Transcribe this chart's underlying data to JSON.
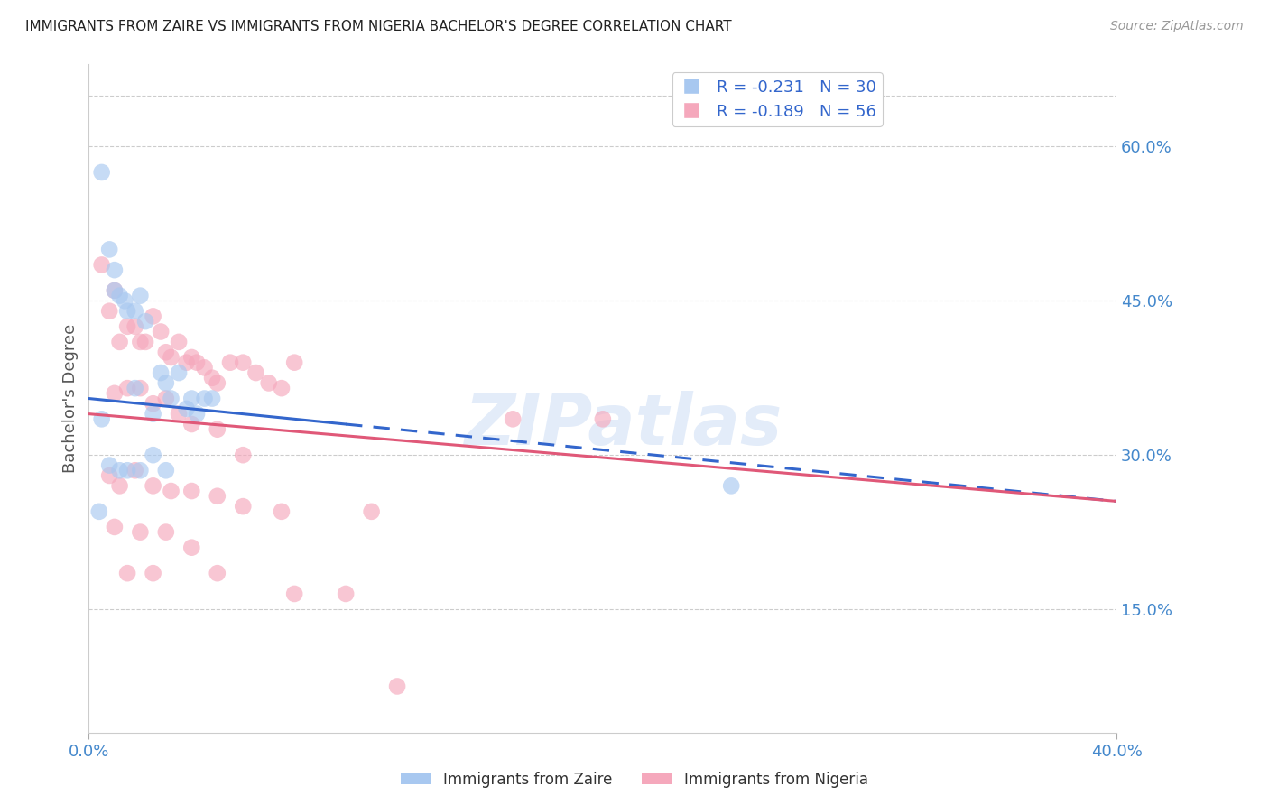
{
  "title": "IMMIGRANTS FROM ZAIRE VS IMMIGRANTS FROM NIGERIA BACHELOR'S DEGREE CORRELATION CHART",
  "source": "Source: ZipAtlas.com",
  "ylabel": "Bachelor's Degree",
  "yticks": [
    0.15,
    0.3,
    0.45,
    0.6
  ],
  "ytick_labels": [
    "15.0%",
    "30.0%",
    "45.0%",
    "60.0%"
  ],
  "xlim": [
    0.0,
    0.4
  ],
  "ylim": [
    0.03,
    0.68
  ],
  "legend_blue_r": "R = -0.231",
  "legend_blue_n": "N = 30",
  "legend_pink_r": "R = -0.189",
  "legend_pink_n": "N = 56",
  "legend_label_blue": "Immigrants from Zaire",
  "legend_label_pink": "Immigrants from Nigeria",
  "color_blue": "#a8c8f0",
  "color_pink": "#f5a8bc",
  "color_blue_line": "#3366cc",
  "color_pink_line": "#e05878",
  "color_axis_text": "#4488cc",
  "watermark": "ZIPatlas",
  "zaire_x": [
    0.005,
    0.008,
    0.01,
    0.01,
    0.012,
    0.014,
    0.015,
    0.018,
    0.02,
    0.022,
    0.025,
    0.028,
    0.03,
    0.032,
    0.035,
    0.038,
    0.04,
    0.042,
    0.045,
    0.048,
    0.005,
    0.008,
    0.012,
    0.015,
    0.02,
    0.025,
    0.03,
    0.25,
    0.004,
    0.018
  ],
  "zaire_y": [
    0.575,
    0.5,
    0.48,
    0.46,
    0.455,
    0.45,
    0.44,
    0.44,
    0.455,
    0.43,
    0.34,
    0.38,
    0.37,
    0.355,
    0.38,
    0.345,
    0.355,
    0.34,
    0.355,
    0.355,
    0.335,
    0.29,
    0.285,
    0.285,
    0.285,
    0.3,
    0.285,
    0.27,
    0.245,
    0.365
  ],
  "nigeria_x": [
    0.005,
    0.008,
    0.01,
    0.012,
    0.015,
    0.018,
    0.02,
    0.022,
    0.025,
    0.028,
    0.03,
    0.032,
    0.035,
    0.038,
    0.04,
    0.042,
    0.045,
    0.048,
    0.05,
    0.055,
    0.06,
    0.065,
    0.07,
    0.075,
    0.08,
    0.01,
    0.015,
    0.02,
    0.025,
    0.03,
    0.035,
    0.04,
    0.05,
    0.06,
    0.2,
    0.008,
    0.012,
    0.018,
    0.025,
    0.032,
    0.04,
    0.05,
    0.06,
    0.075,
    0.165,
    0.01,
    0.02,
    0.03,
    0.04,
    0.11,
    0.015,
    0.025,
    0.05,
    0.08,
    0.1,
    0.12
  ],
  "nigeria_y": [
    0.485,
    0.44,
    0.46,
    0.41,
    0.425,
    0.425,
    0.41,
    0.41,
    0.435,
    0.42,
    0.4,
    0.395,
    0.41,
    0.39,
    0.395,
    0.39,
    0.385,
    0.375,
    0.37,
    0.39,
    0.39,
    0.38,
    0.37,
    0.365,
    0.39,
    0.36,
    0.365,
    0.365,
    0.35,
    0.355,
    0.34,
    0.33,
    0.325,
    0.3,
    0.335,
    0.28,
    0.27,
    0.285,
    0.27,
    0.265,
    0.265,
    0.26,
    0.25,
    0.245,
    0.335,
    0.23,
    0.225,
    0.225,
    0.21,
    0.245,
    0.185,
    0.185,
    0.185,
    0.165,
    0.165,
    0.075
  ],
  "trendline_blue_x0": 0.0,
  "trendline_blue_y0": 0.355,
  "trendline_blue_x1": 0.1,
  "trendline_blue_y1": 0.33,
  "trendline_blue_dash_x1": 0.4,
  "trendline_blue_dash_y1": 0.255,
  "trendline_pink_x0": 0.0,
  "trendline_pink_y0": 0.34,
  "trendline_pink_x1": 0.4,
  "trendline_pink_y1": 0.255
}
